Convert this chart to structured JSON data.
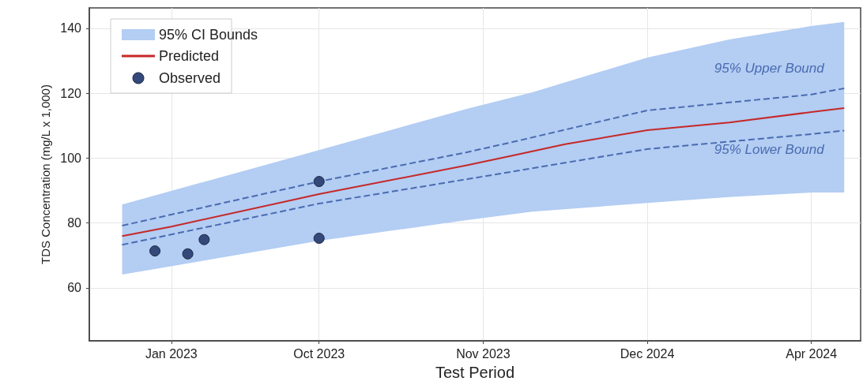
{
  "chart_data": {
    "type": "line",
    "xlabel": "Test Period",
    "ylabel": "TDS Concentration (mg/L x 1,000)",
    "categories": [
      null,
      null,
      null,
      null,
      null,
      "Jan 2023",
      null,
      null,
      null,
      null,
      null,
      null,
      null,
      null,
      "Oct 2023",
      null,
      null,
      null,
      null,
      null,
      null,
      null,
      null,
      null,
      "Nov 2023",
      null,
      null,
      null,
      null,
      null,
      null,
      null,
      null,
      null,
      "Dec 2024",
      null,
      null,
      null,
      null,
      null,
      null,
      null,
      null,
      null,
      "Apr 2024",
      null,
      null,
      null
    ],
    "ylim": [
      43.7,
      146.3
    ],
    "yticks": [
      60,
      80,
      100,
      120,
      140
    ],
    "grid": true,
    "legend": "top left",
    "annotations": [
      "95% CI Bounds"
    ],
    "series": [
      {
        "name": "Predicted",
        "color": "#c62828",
        "values": [
          null,
          null,
          76.0,
          null,
          null,
          78.9,
          null,
          null,
          null,
          null,
          null,
          null,
          null,
          null,
          88.9,
          null,
          null,
          null,
          null,
          null,
          null,
          null,
          null,
          97.8,
          null,
          null,
          101.0,
          null,
          null,
          104.3,
          null,
          null,
          null,
          null,
          108.6,
          null,
          null,
          null,
          null,
          111.0,
          null,
          null,
          null,
          null,
          114.2,
          null,
          115.4,
          null
        ],
        "upper": [
          null,
          null,
          85.7,
          null,
          null,
          null,
          null,
          null,
          null,
          null,
          null,
          null,
          null,
          null,
          102.5,
          null,
          null,
          null,
          null,
          null,
          null,
          null,
          null,
          115.2,
          null,
          null,
          null,
          120.3,
          null,
          null,
          null,
          null,
          null,
          null,
          131.0,
          null,
          null,
          null,
          null,
          136.6,
          null,
          null,
          null,
          null,
          140.7,
          null,
          142.0,
          null
        ],
        "lower": [
          null,
          null,
          64.1,
          null,
          null,
          null,
          null,
          null,
          null,
          null,
          null,
          null,
          null,
          null,
          74.5,
          null,
          null,
          null,
          null,
          null,
          null,
          null,
          null,
          80.9,
          null,
          null,
          null,
          83.5,
          null,
          null,
          null,
          null,
          null,
          null,
          86.2,
          null,
          null,
          null,
          null,
          88.0,
          null,
          null,
          null,
          null,
          89.4,
          null,
          89.4,
          null
        ]
      },
      {
        "name": "95% Upper Bound",
        "line_style": "dashed",
        "color": "#4a6bb0",
        "values": [
          null,
          null,
          79.2,
          null,
          null,
          null,
          null,
          null,
          null,
          null,
          null,
          null,
          null,
          null,
          92.8,
          null,
          null,
          null,
          null,
          null,
          null,
          null,
          null,
          101.8,
          null,
          null,
          105.2,
          null,
          null,
          null,
          null,
          null,
          null,
          null,
          114.7,
          null,
          null,
          null,
          null,
          null,
          null,
          null,
          null,
          null,
          119.6,
          null,
          121.5,
          null
        ]
      },
      {
        "name": "95% Lower Bound",
        "line_style": "dashed",
        "color": "#4a6bb0",
        "values": [
          null,
          null,
          73.3,
          null,
          null,
          null,
          null,
          null,
          null,
          null,
          null,
          null,
          null,
          null,
          86.0,
          null,
          null,
          null,
          null,
          null,
          null,
          null,
          null,
          93.5,
          null,
          null,
          null,
          null,
          null,
          null,
          null,
          null,
          null,
          null,
          102.8,
          null,
          null,
          null,
          null,
          null,
          null,
          null,
          null,
          null,
          107.4,
          null,
          108.5,
          null
        ]
      },
      {
        "name": "Observed",
        "type": "scatter",
        "marker": "circle",
        "color": "#34497a",
        "values": [
          null,
          null,
          null,
          null,
          71.4,
          null,
          70.5,
          74.9,
          null,
          null,
          null,
          null,
          null,
          null,
          92.8,
          null,
          null,
          null,
          null,
          null,
          null,
          null,
          null,
          null,
          null,
          null,
          null,
          null,
          null,
          null,
          null,
          null,
          null,
          null,
          null,
          null,
          null,
          null,
          null,
          null,
          null,
          null,
          null,
          null,
          null,
          null,
          null,
          null
        ]
      },
      {
        "type": "scatter",
        "marker": "circle",
        "color": "#34497a",
        "values": [
          null,
          null,
          null,
          null,
          null,
          null,
          null,
          null,
          null,
          null,
          null,
          null,
          null,
          null,
          75.3,
          null,
          null,
          null,
          null,
          null,
          null,
          null,
          null,
          null,
          null,
          null,
          null,
          null,
          null,
          null,
          null,
          null,
          null,
          null,
          null,
          null,
          null,
          null,
          null,
          null,
          null,
          null,
          null,
          null,
          null,
          null,
          null,
          null
        ]
      }
    ]
  }
}
